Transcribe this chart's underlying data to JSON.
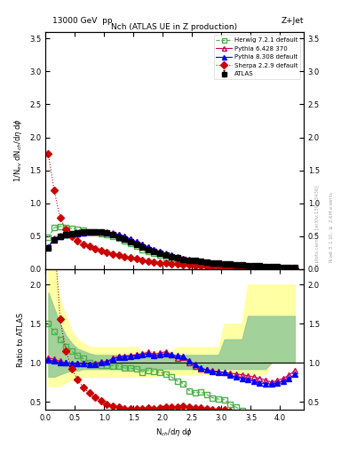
{
  "title_main": "Nch (ATLAS UE in Z production)",
  "title_top_left": "13000 GeV pp",
  "title_top_right": "Z+Jet",
  "ylabel_main": "1/N$_{ev}$ dN$_{ch}$/d$\\eta$ d$\\phi$",
  "ylabel_ratio": "Ratio to ATLAS",
  "xlabel": "N$_{ch}$/d$\\eta$ d$\\phi$",
  "watermark": "mcplots.cern.ch [arXiv:1306.3436]",
  "rivet_label": "Rivet 3.1.10, ≥ 2.6M events",
  "atlas_x": [
    0.05,
    0.15,
    0.25,
    0.35,
    0.45,
    0.55,
    0.65,
    0.75,
    0.85,
    0.95,
    1.05,
    1.15,
    1.25,
    1.35,
    1.45,
    1.55,
    1.65,
    1.75,
    1.85,
    1.95,
    2.05,
    2.15,
    2.25,
    2.35,
    2.45,
    2.55,
    2.65,
    2.75,
    2.85,
    2.95,
    3.05,
    3.15,
    3.25,
    3.35,
    3.45,
    3.55,
    3.65,
    3.75,
    3.85,
    3.95,
    4.05,
    4.15,
    4.25
  ],
  "atlas_y": [
    0.32,
    0.45,
    0.5,
    0.52,
    0.54,
    0.55,
    0.56,
    0.57,
    0.57,
    0.56,
    0.55,
    0.52,
    0.49,
    0.46,
    0.42,
    0.38,
    0.34,
    0.3,
    0.27,
    0.24,
    0.21,
    0.19,
    0.17,
    0.15,
    0.14,
    0.13,
    0.12,
    0.11,
    0.1,
    0.09,
    0.08,
    0.075,
    0.07,
    0.065,
    0.06,
    0.055,
    0.05,
    0.045,
    0.04,
    0.035,
    0.03,
    0.025,
    0.02
  ],
  "atlas_yerr": [
    0.02,
    0.02,
    0.02,
    0.02,
    0.02,
    0.02,
    0.02,
    0.02,
    0.02,
    0.02,
    0.02,
    0.02,
    0.015,
    0.015,
    0.015,
    0.015,
    0.015,
    0.01,
    0.01,
    0.01,
    0.01,
    0.01,
    0.01,
    0.008,
    0.008,
    0.008,
    0.007,
    0.006,
    0.006,
    0.005,
    0.005,
    0.005,
    0.005,
    0.004,
    0.004,
    0.004,
    0.003,
    0.003,
    0.003,
    0.003,
    0.003,
    0.002,
    0.002
  ],
  "herwig_x": [
    0.05,
    0.15,
    0.25,
    0.35,
    0.45,
    0.55,
    0.65,
    0.75,
    0.85,
    0.95,
    1.05,
    1.15,
    1.25,
    1.35,
    1.45,
    1.55,
    1.65,
    1.75,
    1.85,
    1.95,
    2.05,
    2.15,
    2.25,
    2.35,
    2.45,
    2.55,
    2.65,
    2.75,
    2.85,
    2.95,
    3.05,
    3.15,
    3.25,
    3.35,
    3.45,
    3.55,
    3.65,
    3.75,
    3.85,
    3.95,
    4.05,
    4.15,
    4.25
  ],
  "herwig_y": [
    0.48,
    0.63,
    0.65,
    0.63,
    0.62,
    0.6,
    0.59,
    0.57,
    0.56,
    0.54,
    0.53,
    0.5,
    0.47,
    0.43,
    0.39,
    0.35,
    0.3,
    0.27,
    0.24,
    0.21,
    0.18,
    0.155,
    0.13,
    0.11,
    0.09,
    0.08,
    0.075,
    0.065,
    0.055,
    0.048,
    0.042,
    0.035,
    0.03,
    0.025,
    0.02,
    0.018,
    0.015,
    0.013,
    0.011,
    0.01,
    0.009,
    0.008,
    0.007
  ],
  "pythia6_x": [
    0.05,
    0.15,
    0.25,
    0.35,
    0.45,
    0.55,
    0.65,
    0.75,
    0.85,
    0.95,
    1.05,
    1.15,
    1.25,
    1.35,
    1.45,
    1.55,
    1.65,
    1.75,
    1.85,
    1.95,
    2.05,
    2.15,
    2.25,
    2.35,
    2.45,
    2.55,
    2.65,
    2.75,
    2.85,
    2.95,
    3.05,
    3.15,
    3.25,
    3.35,
    3.45,
    3.55,
    3.65,
    3.75,
    3.85,
    3.95,
    4.05,
    4.15,
    4.25
  ],
  "pythia6_y": [
    0.34,
    0.47,
    0.51,
    0.52,
    0.53,
    0.545,
    0.555,
    0.56,
    0.565,
    0.565,
    0.56,
    0.55,
    0.53,
    0.5,
    0.46,
    0.42,
    0.38,
    0.34,
    0.3,
    0.27,
    0.24,
    0.21,
    0.18,
    0.16,
    0.14,
    0.125,
    0.11,
    0.1,
    0.09,
    0.08,
    0.07,
    0.065,
    0.06,
    0.055,
    0.05,
    0.045,
    0.04,
    0.035,
    0.03,
    0.027,
    0.024,
    0.021,
    0.018
  ],
  "pythia8_x": [
    0.05,
    0.15,
    0.25,
    0.35,
    0.45,
    0.55,
    0.65,
    0.75,
    0.85,
    0.95,
    1.05,
    1.15,
    1.25,
    1.35,
    1.45,
    1.55,
    1.65,
    1.75,
    1.85,
    1.95,
    2.05,
    2.15,
    2.25,
    2.35,
    2.45,
    2.55,
    2.65,
    2.75,
    2.85,
    2.95,
    3.05,
    3.15,
    3.25,
    3.35,
    3.45,
    3.55,
    3.65,
    3.75,
    3.85,
    3.95,
    4.05,
    4.15,
    4.25
  ],
  "pythia8_y": [
    0.33,
    0.46,
    0.5,
    0.52,
    0.535,
    0.545,
    0.555,
    0.56,
    0.56,
    0.56,
    0.555,
    0.545,
    0.525,
    0.495,
    0.455,
    0.415,
    0.375,
    0.335,
    0.295,
    0.265,
    0.235,
    0.21,
    0.185,
    0.163,
    0.143,
    0.127,
    0.112,
    0.1,
    0.089,
    0.079,
    0.07,
    0.063,
    0.057,
    0.052,
    0.047,
    0.042,
    0.037,
    0.033,
    0.029,
    0.026,
    0.023,
    0.02,
    0.017
  ],
  "sherpa_x": [
    0.05,
    0.15,
    0.25,
    0.35,
    0.45,
    0.55,
    0.65,
    0.75,
    0.85,
    0.95,
    1.05,
    1.15,
    1.25,
    1.35,
    1.45,
    1.55,
    1.65,
    1.75,
    1.85,
    1.95,
    2.05,
    2.15,
    2.25,
    2.35,
    2.45,
    2.55,
    2.65,
    2.75,
    2.85,
    2.95,
    3.05,
    3.15,
    3.25,
    3.35,
    3.45,
    3.55,
    3.65,
    3.75,
    3.85,
    3.95,
    4.05,
    4.15,
    4.25
  ],
  "sherpa_y": [
    1.75,
    1.2,
    0.78,
    0.6,
    0.5,
    0.43,
    0.38,
    0.35,
    0.315,
    0.285,
    0.255,
    0.23,
    0.21,
    0.19,
    0.17,
    0.155,
    0.14,
    0.125,
    0.11,
    0.1,
    0.09,
    0.082,
    0.074,
    0.067,
    0.061,
    0.055,
    0.05,
    0.045,
    0.04,
    0.036,
    0.032,
    0.028,
    0.025,
    0.022,
    0.019,
    0.017,
    0.015,
    0.013,
    0.011,
    0.01,
    0.009,
    0.008,
    0.007
  ],
  "atlas_color": "#000000",
  "herwig_color": "#4daf4a",
  "pythia6_color": "#cc0000",
  "pythia8_color": "#0000ff",
  "sherpa_color": "#cc0000",
  "band_yellow_lo": [
    0.7,
    0.7,
    0.7,
    0.75,
    0.78,
    0.8,
    0.82,
    0.82,
    0.82,
    0.82,
    0.82,
    0.82,
    0.82,
    0.82,
    0.82,
    0.82,
    0.82,
    0.82,
    0.82,
    0.85,
    0.85,
    0.85,
    0.85,
    0.85,
    0.85,
    0.85,
    0.85,
    0.85,
    0.85,
    0.85,
    0.85,
    0.85,
    0.85,
    0.85,
    0.85,
    0.85,
    0.85,
    0.85,
    1.0,
    1.0,
    1.0,
    1.0,
    1.0
  ],
  "band_yellow_hi": [
    2.3,
    2.3,
    1.8,
    1.6,
    1.4,
    1.3,
    1.25,
    1.2,
    1.2,
    1.2,
    1.2,
    1.2,
    1.2,
    1.2,
    1.2,
    1.2,
    1.15,
    1.15,
    1.15,
    1.15,
    1.15,
    1.15,
    1.2,
    1.2,
    1.2,
    1.2,
    1.2,
    1.2,
    1.2,
    1.2,
    1.5,
    1.5,
    1.5,
    1.5,
    2.0,
    2.0,
    2.0,
    2.0,
    2.0,
    2.0,
    2.0,
    2.0,
    2.0
  ],
  "band_green_lo": [
    0.82,
    0.82,
    0.85,
    0.88,
    0.9,
    0.9,
    0.92,
    0.92,
    0.92,
    0.92,
    0.92,
    0.92,
    0.92,
    0.92,
    0.92,
    0.92,
    0.92,
    0.92,
    0.92,
    0.92,
    0.92,
    0.92,
    0.92,
    0.92,
    0.92,
    0.92,
    0.92,
    0.92,
    0.92,
    0.92,
    0.92,
    0.92,
    0.92,
    0.92,
    0.92,
    0.92,
    0.92,
    0.92,
    1.0,
    1.0,
    1.0,
    1.0,
    1.0
  ],
  "band_green_hi": [
    1.9,
    1.7,
    1.5,
    1.35,
    1.25,
    1.18,
    1.15,
    1.12,
    1.1,
    1.1,
    1.1,
    1.1,
    1.1,
    1.1,
    1.1,
    1.1,
    1.08,
    1.08,
    1.08,
    1.08,
    1.08,
    1.08,
    1.1,
    1.1,
    1.1,
    1.1,
    1.1,
    1.1,
    1.1,
    1.1,
    1.3,
    1.3,
    1.3,
    1.3,
    1.6,
    1.6,
    1.6,
    1.6,
    1.6,
    1.6,
    1.6,
    1.6,
    1.6
  ],
  "xlim": [
    0,
    4.4
  ],
  "ylim_main": [
    0,
    3.6
  ],
  "ylim_ratio": [
    0.4,
    2.2
  ],
  "yticks_main": [
    0,
    0.5,
    1.0,
    1.5,
    2.0,
    2.5,
    3.0,
    3.5
  ],
  "yticks_ratio": [
    0.5,
    1.0,
    1.5,
    2.0
  ]
}
